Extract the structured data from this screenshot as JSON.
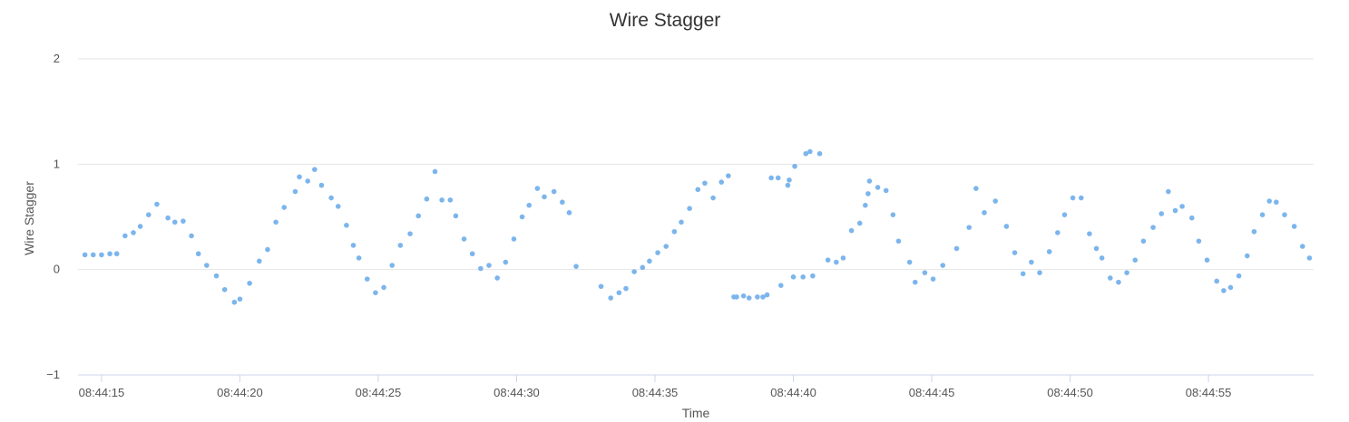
{
  "chart_data": {
    "type": "scatter",
    "title": "Wire Stagger",
    "xlabel": "Time",
    "ylabel": "Wire Stagger",
    "xlim": [
      "08:44:14.15",
      "08:44:58.80"
    ],
    "ylim": [
      -1,
      2
    ],
    "y_ticks": [
      "−1",
      "0",
      "1",
      "2"
    ],
    "x_ticks": [
      "08:44:15",
      "08:44:20",
      "08:44:25",
      "08:44:30",
      "08:44:35",
      "08:44:40",
      "08:44:45",
      "08:44:50",
      "08:44:55"
    ],
    "grid": true,
    "legend": "none",
    "point_color": "#7cb5ec",
    "series": [
      {
        "x": [
          "08:44:14.40",
          "08:44:14.70",
          "08:44:15.00",
          "08:44:15.30",
          "08:44:15.55",
          "08:44:15.85",
          "08:44:16.15",
          "08:44:16.40",
          "08:44:16.70",
          "08:44:17.00",
          "08:44:17.40",
          "08:44:17.65",
          "08:44:17.95",
          "08:44:18.25",
          "08:44:18.50",
          "08:44:18.80",
          "08:44:19.15",
          "08:44:19.45",
          "08:44:19.80",
          "08:44:20.00",
          "08:44:20.35",
          "08:44:20.70",
          "08:44:21.00",
          "08:44:21.30",
          "08:44:21.60",
          "08:44:22.00",
          "08:44:22.15",
          "08:44:22.45",
          "08:44:22.70",
          "08:44:22.95",
          "08:44:23.30",
          "08:44:23.55",
          "08:44:23.85",
          "08:44:24.10",
          "08:44:24.30",
          "08:44:24.60",
          "08:44:24.90",
          "08:44:25.20",
          "08:44:25.50",
          "08:44:25.80",
          "08:44:26.15",
          "08:44:26.45",
          "08:44:26.75",
          "08:44:27.05",
          "08:44:27.30",
          "08:44:27.60",
          "08:44:27.80",
          "08:44:28.10",
          "08:44:28.40",
          "08:44:28.70",
          "08:44:29.00",
          "08:44:29.30",
          "08:44:29.60",
          "08:44:29.90",
          "08:44:30.20",
          "08:44:30.45",
          "08:44:30.75",
          "08:44:31.00",
          "08:44:31.35",
          "08:44:31.65",
          "08:44:31.90",
          "08:44:32.15",
          "08:44:33.05",
          "08:44:33.40",
          "08:44:33.70",
          "08:44:33.95",
          "08:44:34.25",
          "08:44:34.55",
          "08:44:34.80",
          "08:44:35.10",
          "08:44:35.40",
          "08:44:35.70",
          "08:44:35.95",
          "08:44:36.25",
          "08:44:36.55",
          "08:44:36.80",
          "08:44:37.10",
          "08:44:37.40",
          "08:44:37.65",
          "08:44:37.85",
          "08:44:37.95",
          "08:44:38.20",
          "08:44:38.40",
          "08:44:38.70",
          "08:44:38.90",
          "08:44:39.05",
          "08:44:39.20",
          "08:44:39.45",
          "08:44:39.55",
          "08:44:39.80",
          "08:44:39.85",
          "08:44:40.00",
          "08:44:40.05",
          "08:44:40.35",
          "08:44:40.45",
          "08:44:40.60",
          "08:44:40.70",
          "08:44:40.95",
          "08:44:41.25",
          "08:44:41.55",
          "08:44:41.80",
          "08:44:42.10",
          "08:44:42.40",
          "08:44:42.60",
          "08:44:42.70",
          "08:44:42.75",
          "08:44:43.05",
          "08:44:43.35",
          "08:44:43.60",
          "08:44:43.80",
          "08:44:44.20",
          "08:44:44.40",
          "08:44:44.75",
          "08:44:45.05",
          "08:44:45.40",
          "08:44:45.90",
          "08:44:46.35",
          "08:44:46.60",
          "08:44:46.90",
          "08:44:47.30",
          "08:44:47.70",
          "08:44:48.00",
          "08:44:48.30",
          "08:44:48.60",
          "08:44:48.90",
          "08:44:49.25",
          "08:44:49.55",
          "08:44:49.80",
          "08:44:50.10",
          "08:44:50.40",
          "08:44:50.70",
          "08:44:50.95",
          "08:44:51.15",
          "08:44:51.45",
          "08:44:51.75",
          "08:44:52.05",
          "08:44:52.35",
          "08:44:52.65",
          "08:44:53.00",
          "08:44:53.30",
          "08:44:53.55",
          "08:44:53.80",
          "08:44:54.05",
          "08:44:54.40",
          "08:44:54.65",
          "08:44:54.95",
          "08:44:55.30",
          "08:44:55.55",
          "08:44:55.80",
          "08:44:56.10",
          "08:44:56.40",
          "08:44:56.65",
          "08:44:56.95",
          "08:44:57.20",
          "08:44:57.45",
          "08:44:57.75",
          "08:44:58.10",
          "08:44:58.40",
          "08:44:58.65"
        ],
        "y": [
          0.14,
          0.14,
          0.14,
          0.15,
          0.15,
          0.32,
          0.35,
          0.41,
          0.52,
          0.62,
          0.49,
          0.45,
          0.46,
          0.32,
          0.15,
          0.04,
          -0.06,
          -0.19,
          -0.31,
          -0.28,
          -0.13,
          0.08,
          0.19,
          0.45,
          0.59,
          0.74,
          0.88,
          0.84,
          0.95,
          0.8,
          0.68,
          0.6,
          0.42,
          0.23,
          0.11,
          -0.09,
          -0.22,
          -0.17,
          0.04,
          0.23,
          0.34,
          0.51,
          0.67,
          0.93,
          0.66,
          0.66,
          0.51,
          0.29,
          0.15,
          0.01,
          0.04,
          -0.08,
          0.07,
          0.29,
          0.5,
          0.61,
          0.77,
          0.69,
          0.74,
          0.64,
          0.54,
          0.03,
          -0.16,
          -0.27,
          -0.22,
          -0.18,
          -0.02,
          0.02,
          0.08,
          0.16,
          0.22,
          0.36,
          0.45,
          0.58,
          0.76,
          0.82,
          0.68,
          0.83,
          0.89,
          -0.26,
          -0.26,
          -0.25,
          -0.27,
          -0.26,
          -0.26,
          -0.24,
          0.87,
          0.87,
          -0.15,
          0.8,
          0.85,
          -0.07,
          0.98,
          -0.07,
          1.1,
          1.12,
          -0.06,
          1.1,
          0.09,
          0.07,
          0.11,
          0.37,
          0.44,
          0.61,
          0.72,
          0.84,
          0.78,
          0.75,
          0.52,
          0.27,
          0.07,
          -0.12,
          -0.03,
          -0.09,
          0.04,
          0.2,
          0.4,
          0.77,
          0.54,
          0.65,
          0.41,
          0.16,
          -0.04,
          0.07,
          -0.03,
          0.17,
          0.35,
          0.52,
          0.68,
          0.68,
          0.34,
          0.2,
          0.11,
          -0.08,
          -0.12,
          -0.03,
          0.09,
          0.27,
          0.4,
          0.53,
          0.74,
          0.56,
          0.6,
          0.49,
          0.27,
          0.09,
          -0.11,
          -0.2,
          -0.17,
          -0.06,
          0.13,
          0.36,
          0.52,
          0.65,
          0.64,
          0.52,
          0.41,
          0.22,
          0.11
        ]
      }
    ]
  }
}
